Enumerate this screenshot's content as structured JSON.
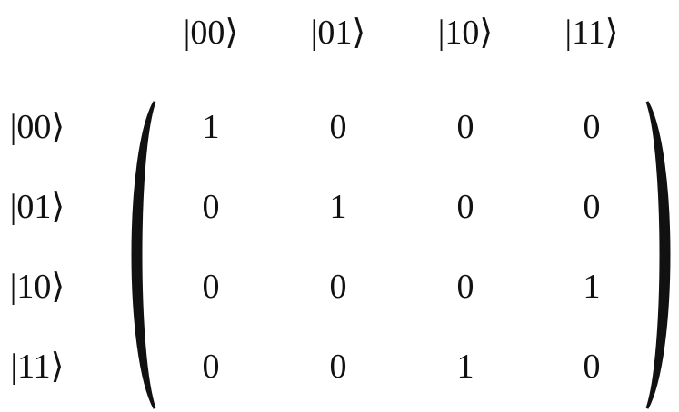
{
  "column_labels": [
    "|00⟩",
    "|01⟩",
    "|10⟩",
    "|11⟩"
  ],
  "row_labels": [
    "|00⟩",
    "|01⟩",
    "|10⟩",
    "|11⟩"
  ],
  "matrix": [
    [
      "1",
      "0",
      "0",
      "0"
    ],
    [
      "0",
      "1",
      "0",
      "0"
    ],
    [
      "0",
      "0",
      "0",
      "1"
    ],
    [
      "0",
      "0",
      "1",
      "0"
    ]
  ]
}
